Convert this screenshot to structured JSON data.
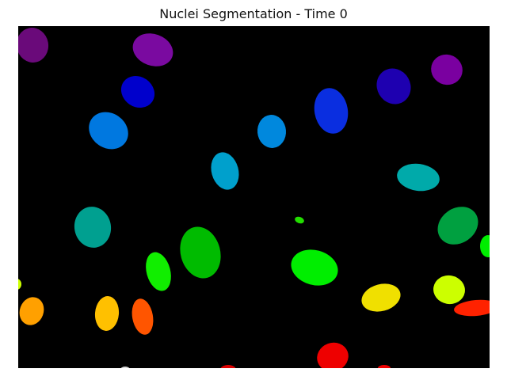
{
  "figure": {
    "title": "Nuclei Segmentation - Time 0"
  },
  "image": {
    "description_kind": "segmentation-label-mask",
    "background_color": "#000000",
    "nuclei_colors": [
      "#6a0a7a",
      "#7a0aa0",
      "#0000cc",
      "#1e00b0",
      "#7a00a0",
      "#0a2ee0",
      "#0078e0",
      "#0088dd",
      "#00a0cc",
      "#00aaaa",
      "#00a090",
      "#00a040",
      "#00bb00",
      "#00ee00",
      "#11ee00",
      "#22dd00",
      "#ccff00",
      "#f0e000",
      "#ffc000",
      "#ffa000",
      "#ff5500",
      "#ff2200",
      "#ee0000",
      "#dd0000",
      "#dddddd"
    ]
  }
}
